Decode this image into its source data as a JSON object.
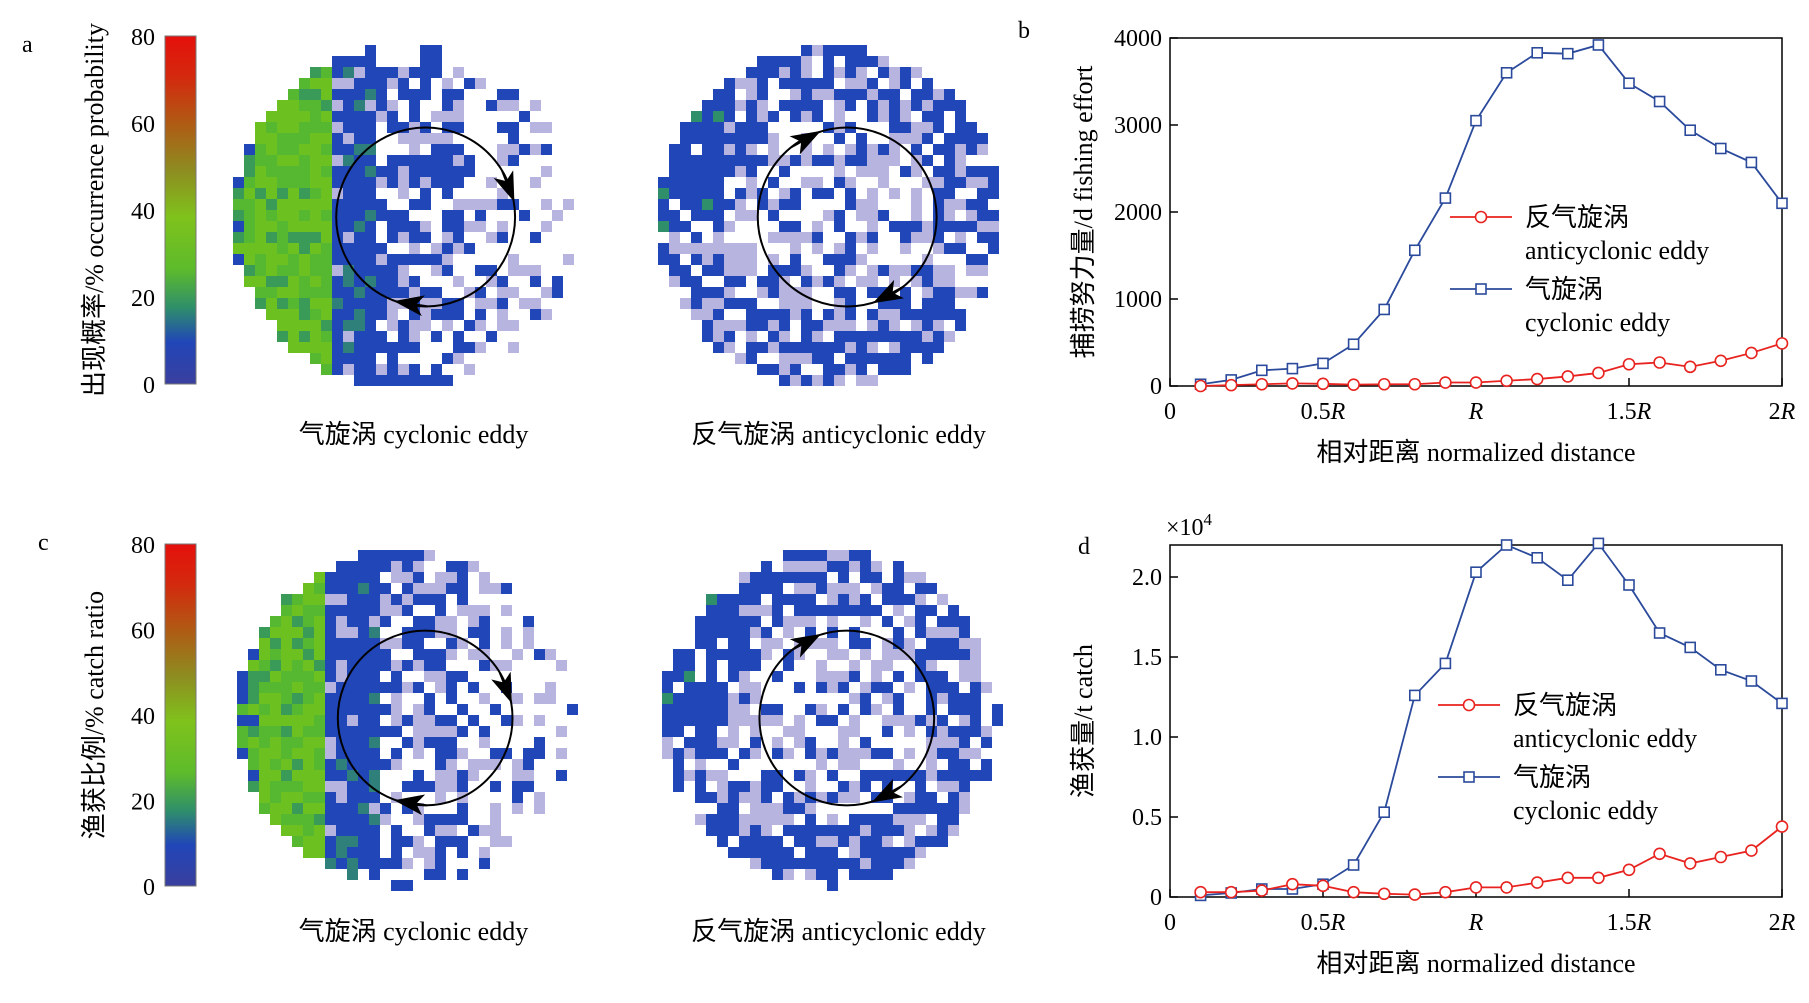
{
  "chart_data": [
    {
      "panel": "a",
      "type": "heatmap",
      "colorbar": {
        "label": "出现概率/% occurrence probability",
        "ticks": [
          "80",
          "60",
          "40",
          "20",
          "0"
        ],
        "range": [
          0,
          80
        ]
      },
      "maps": [
        {
          "label": "气旋涡 cyclonic eddy",
          "kind": "cyclonic"
        },
        {
          "label": "反气旋涡 anticyclonic eddy",
          "kind": "anticyclonic"
        }
      ]
    },
    {
      "panel": "b",
      "type": "line",
      "ylabel": "捕捞努力量/d fishing effort",
      "xlabel": "相对距离 normalized distance",
      "xlim": [
        0,
        2
      ],
      "ylim": [
        0,
        4000
      ],
      "yticks": [
        0,
        1000,
        2000,
        3000,
        4000
      ],
      "ytick_labels": [
        "0",
        "1000",
        "2000",
        "3000",
        "4000"
      ],
      "xticks": [
        0,
        0.5,
        1,
        1.5,
        2
      ],
      "xtick_labels": [
        [
          "0",
          ""
        ],
        [
          "0.5",
          "R"
        ],
        [
          "",
          "R"
        ],
        [
          "1.5",
          "R"
        ],
        [
          "2",
          "R"
        ]
      ],
      "x": [
        0.1,
        0.2,
        0.3,
        0.4,
        0.5,
        0.6,
        0.7,
        0.8,
        0.9,
        1.0,
        1.1,
        1.2,
        1.3,
        1.4,
        1.5,
        1.6,
        1.7,
        1.8,
        1.9,
        2.0
      ],
      "legend_placement": "center-right",
      "series": [
        {
          "name": "反气旋涡",
          "name2": "anticyclonic eddy",
          "color": "#e8231f",
          "marker": "circle",
          "values": [
            0,
            10,
            20,
            30,
            25,
            15,
            20,
            20,
            40,
            40,
            60,
            80,
            110,
            150,
            250,
            270,
            220,
            290,
            380,
            490
          ]
        },
        {
          "name": "气旋涡",
          "name2": "cyclonic eddy",
          "color": "#2b4a9c",
          "marker": "square",
          "values": [
            20,
            70,
            180,
            200,
            260,
            480,
            880,
            1560,
            2160,
            3050,
            3600,
            3830,
            3820,
            3920,
            3480,
            3270,
            2940,
            2730,
            2570,
            2100
          ]
        }
      ]
    },
    {
      "panel": "c",
      "type": "heatmap",
      "colorbar": {
        "label": "渔获比例/% catch ratio",
        "ticks": [
          "80",
          "60",
          "40",
          "20",
          "0"
        ],
        "range": [
          0,
          80
        ]
      },
      "maps": [
        {
          "label": "气旋涡 cyclonic eddy",
          "kind": "cyclonic"
        },
        {
          "label": "反气旋涡 anticyclonic eddy",
          "kind": "anticyclonic"
        }
      ]
    },
    {
      "panel": "d",
      "type": "line",
      "ylabel": "渔获量/t catch",
      "xlabel": "相对距离 normalized distance",
      "multiplier": {
        "base": "×10",
        "exp": "4"
      },
      "xlim": [
        0,
        2
      ],
      "ylim": [
        0,
        22000
      ],
      "yticks": [
        0,
        5000,
        10000,
        15000,
        20000
      ],
      "ytick_labels": [
        "0",
        "0.5",
        "1.0",
        "1.5",
        "2.0"
      ],
      "xticks": [
        0,
        0.5,
        1,
        1.5,
        2
      ],
      "xtick_labels": [
        [
          "0",
          ""
        ],
        [
          "0.5",
          "R"
        ],
        [
          "",
          "R"
        ],
        [
          "1.5",
          "R"
        ],
        [
          "2",
          "R"
        ]
      ],
      "x": [
        0.1,
        0.2,
        0.3,
        0.4,
        0.5,
        0.6,
        0.7,
        0.8,
        0.9,
        1.0,
        1.1,
        1.2,
        1.3,
        1.4,
        1.5,
        1.6,
        1.7,
        1.8,
        1.9,
        2.0
      ],
      "legend_placement": "center-right",
      "series": [
        {
          "name": "反气旋涡",
          "name2": "anticyclonic eddy",
          "color": "#e8231f",
          "marker": "circle",
          "values": [
            300,
            300,
            400,
            800,
            700,
            300,
            200,
            150,
            300,
            600,
            600,
            900,
            1200,
            1200,
            1700,
            2700,
            2100,
            2500,
            2900,
            4400
          ]
        },
        {
          "name": "气旋涡",
          "name2": "cyclonic eddy",
          "color": "#2b4a9c",
          "marker": "square",
          "values": [
            100,
            250,
            500,
            500,
            800,
            2000,
            5300,
            12600,
            14600,
            20300,
            22000,
            21200,
            19800,
            22100,
            19500,
            16500,
            15600,
            14200,
            13500,
            12100
          ]
        }
      ]
    }
  ]
}
